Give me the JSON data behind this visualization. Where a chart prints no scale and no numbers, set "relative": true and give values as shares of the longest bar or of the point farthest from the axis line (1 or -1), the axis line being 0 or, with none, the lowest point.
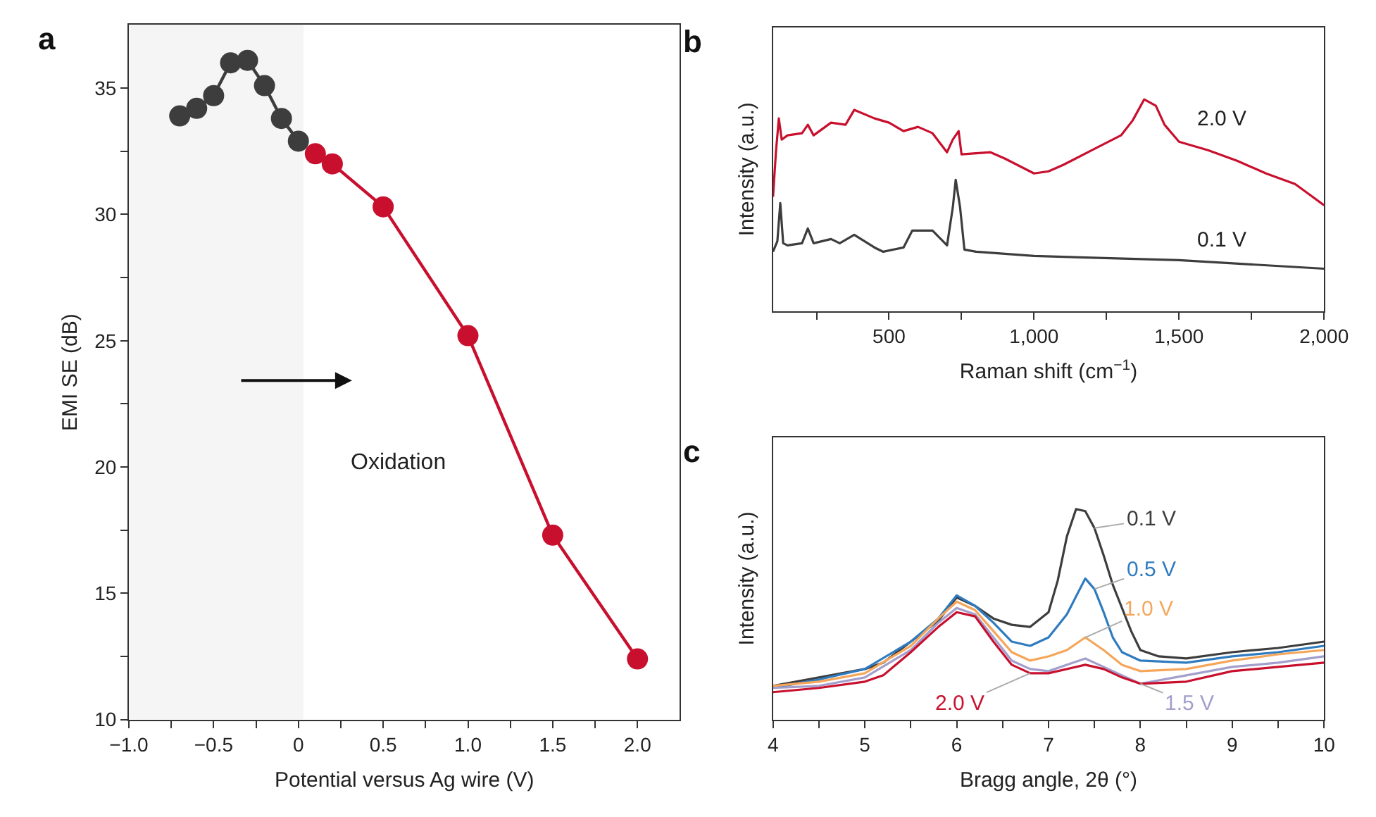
{
  "chart_data": [
    {
      "type": "line",
      "title": "a",
      "xlabel": "Potential versus Ag wire (V)",
      "ylabel": "EMI SE (dB)",
      "xlim": [
        -1.0,
        2.25
      ],
      "ylim": [
        10,
        37.5
      ],
      "xticks": [
        {
          "value": -1.0,
          "label": "−1.0"
        },
        {
          "value": -0.75,
          "label": null
        },
        {
          "value": -0.5,
          "label": "−0.5"
        },
        {
          "value": -0.25,
          "label": null
        },
        0,
        {
          "value": 0.25,
          "label": null
        },
        {
          "value": 0.5,
          "label": "0.5"
        },
        {
          "value": 0.75,
          "label": null
        },
        {
          "value": 1.0,
          "label": "1.0"
        },
        {
          "value": 1.25,
          "label": null
        },
        {
          "value": 1.5,
          "label": "1.5"
        },
        {
          "value": 1.75,
          "label": null
        },
        {
          "value": 2.0,
          "label": "2.0"
        }
      ],
      "yticks": [
        10,
        {
          "value": 12.5,
          "label": null
        },
        15,
        {
          "value": 17.5,
          "label": null
        },
        20,
        {
          "value": 22.5,
          "label": null
        },
        25,
        {
          "value": 27.5,
          "label": null
        },
        30,
        {
          "value": 32.5,
          "label": null
        },
        35
      ],
      "marker": "circle",
      "grid": false,
      "bands": [
        {
          "axis": "x",
          "from": -1.0,
          "to": 0.03,
          "color": "#f5f5f5"
        }
      ],
      "annotations": [
        "Oxidation"
      ],
      "series": [
        {
          "color": "#3d3d3d",
          "x": [
            -0.7,
            -0.6,
            -0.5,
            -0.4,
            -0.3,
            -0.2,
            -0.1,
            0
          ],
          "values": [
            33.9,
            34.2,
            34.7,
            36.0,
            36.1,
            35.1,
            33.8,
            32.9
          ]
        },
        {
          "color": "#c8102e",
          "x": [
            0.1,
            0.2,
            0.5,
            1.0,
            1.5,
            2.0
          ],
          "values": [
            32.4,
            32.0,
            30.3,
            25.2,
            17.3,
            12.4
          ]
        }
      ]
    },
    {
      "type": "line",
      "title": "b",
      "xlabel": "Raman shift (cm$^{−1}$)",
      "ylabel": "Intensity (a.u.)",
      "relative": true,
      "xlim": [
        100,
        2000
      ],
      "xticks": [
        {
          "value": 250,
          "label": null
        },
        500,
        {
          "value": 750,
          "label": null
        },
        {
          "value": 1000,
          "label": "1,000"
        },
        {
          "value": 1250,
          "label": null
        },
        {
          "value": 1500,
          "label": "1,500"
        },
        {
          "value": 1750,
          "label": null
        },
        {
          "value": 2000,
          "label": "2,000"
        }
      ],
      "grid": false,
      "marker": "none",
      "series": [
        {
          "name": "2.0 V",
          "color": "#c8102e",
          "x": [
            100,
            110,
            120,
            130,
            150,
            200,
            220,
            240,
            300,
            350,
            380,
            450,
            500,
            550,
            600,
            650,
            700,
            720,
            740,
            750,
            850,
            900,
            1000,
            1050,
            1100,
            1200,
            1300,
            1340,
            1380,
            1420,
            1450,
            1500,
            1600,
            1700,
            1800,
            1900,
            1950,
            2000
          ],
          "values": [
            0.54,
            0.75,
            0.91,
            0.81,
            0.83,
            0.84,
            0.88,
            0.83,
            0.89,
            0.88,
            0.95,
            0.91,
            0.89,
            0.85,
            0.87,
            0.84,
            0.75,
            0.81,
            0.85,
            0.74,
            0.75,
            0.72,
            0.65,
            0.66,
            0.69,
            0.76,
            0.83,
            0.9,
            1.0,
            0.97,
            0.88,
            0.8,
            0.76,
            0.71,
            0.65,
            0.6,
            0.55,
            0.5
          ]
        },
        {
          "name": "0.1 V",
          "color": "#3d3d3d",
          "x": [
            100,
            115,
            125,
            135,
            150,
            200,
            220,
            240,
            300,
            330,
            380,
            450,
            480,
            550,
            580,
            650,
            700,
            720,
            730,
            745,
            760,
            800,
            1000,
            1500,
            2000
          ],
          "values": [
            0.28,
            0.33,
            0.51,
            0.32,
            0.31,
            0.32,
            0.39,
            0.32,
            0.34,
            0.32,
            0.36,
            0.3,
            0.28,
            0.3,
            0.38,
            0.38,
            0.31,
            0.49,
            0.62,
            0.49,
            0.29,
            0.28,
            0.26,
            0.24,
            0.2
          ]
        }
      ]
    },
    {
      "type": "line",
      "title": "c",
      "xlabel": "Bragg angle, 2θ (°)",
      "ylabel": "Intensity (a.u.)",
      "relative": true,
      "xlim": [
        4,
        10
      ],
      "xticks": [
        4,
        {
          "value": 4.5,
          "label": null
        },
        5,
        {
          "value": 5.5,
          "label": null
        },
        6,
        {
          "value": 6.5,
          "label": null
        },
        7,
        {
          "value": 7.5,
          "label": null
        },
        8,
        {
          "value": 8.5,
          "label": null
        },
        9,
        {
          "value": 9.5,
          "label": null
        },
        10
      ],
      "grid": false,
      "marker": "none",
      "series": [
        {
          "name": "0.1 V",
          "color": "#3d3d3d",
          "x": [
            4,
            4.5,
            5,
            5.2,
            5.5,
            5.8,
            6.0,
            6.2,
            6.4,
            6.6,
            6.8,
            7.0,
            7.1,
            7.2,
            7.3,
            7.4,
            7.5,
            7.6,
            7.7,
            7.8,
            7.9,
            8.0,
            8.2,
            8.5,
            9,
            9.5,
            10
          ],
          "values": [
            0.16,
            0.2,
            0.24,
            0.27,
            0.37,
            0.47,
            0.58,
            0.54,
            0.48,
            0.45,
            0.44,
            0.51,
            0.66,
            0.87,
            1.0,
            0.99,
            0.91,
            0.78,
            0.64,
            0.53,
            0.42,
            0.33,
            0.3,
            0.29,
            0.32,
            0.34,
            0.37
          ]
        },
        {
          "name": "0.5 V",
          "color": "#2f7bbf",
          "x": [
            4,
            4.5,
            5,
            5.5,
            5.8,
            6.0,
            6.2,
            6.4,
            6.6,
            6.8,
            7.0,
            7.2,
            7.4,
            7.5,
            7.6,
            7.7,
            7.8,
            8.0,
            8.5,
            9,
            9.5,
            10
          ],
          "values": [
            0.15,
            0.19,
            0.24,
            0.37,
            0.48,
            0.59,
            0.54,
            0.46,
            0.37,
            0.35,
            0.39,
            0.5,
            0.67,
            0.62,
            0.51,
            0.39,
            0.32,
            0.28,
            0.27,
            0.3,
            0.32,
            0.35
          ]
        },
        {
          "name": "1.0 V",
          "color": "#f5a65b",
          "x": [
            4,
            4.5,
            5,
            5.5,
            5.8,
            6.0,
            6.2,
            6.4,
            6.6,
            6.8,
            7.0,
            7.2,
            7.4,
            7.6,
            7.8,
            8.0,
            8.5,
            9,
            9.5,
            10
          ],
          "values": [
            0.16,
            0.18,
            0.22,
            0.35,
            0.48,
            0.56,
            0.52,
            0.42,
            0.32,
            0.28,
            0.3,
            0.33,
            0.39,
            0.33,
            0.26,
            0.23,
            0.24,
            0.28,
            0.31,
            0.33
          ]
        },
        {
          "name": "1.5 V",
          "color": "#a39fcc",
          "x": [
            4,
            4.5,
            5,
            5.5,
            5.8,
            6.0,
            6.2,
            6.4,
            6.6,
            6.8,
            7.0,
            7.4,
            7.6,
            7.8,
            8.0,
            8.5,
            9,
            9.5,
            10
          ],
          "values": [
            0.15,
            0.16,
            0.2,
            0.33,
            0.46,
            0.53,
            0.5,
            0.39,
            0.28,
            0.24,
            0.23,
            0.29,
            0.25,
            0.21,
            0.17,
            0.21,
            0.25,
            0.27,
            0.3
          ]
        },
        {
          "name": "2.0 V",
          "color": "#c8102e",
          "x": [
            4,
            4.5,
            5,
            5.2,
            5.5,
            5.8,
            6.0,
            6.2,
            6.4,
            6.6,
            6.8,
            7.0,
            7.4,
            7.6,
            7.8,
            8.0,
            8.5,
            9,
            9.5,
            10
          ],
          "values": [
            0.13,
            0.15,
            0.18,
            0.21,
            0.32,
            0.44,
            0.51,
            0.49,
            0.37,
            0.26,
            0.22,
            0.22,
            0.26,
            0.24,
            0.2,
            0.17,
            0.18,
            0.23,
            0.25,
            0.27
          ]
        }
      ]
    }
  ]
}
